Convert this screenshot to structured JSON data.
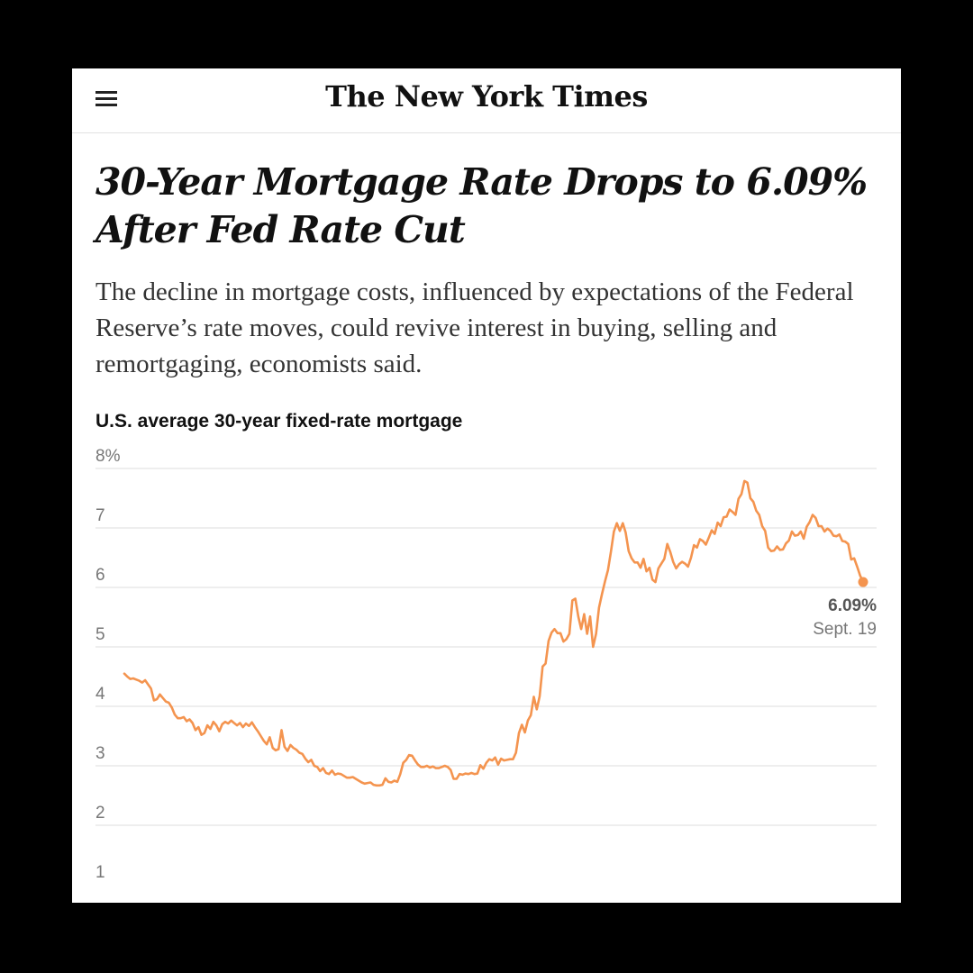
{
  "header": {
    "masthead": "The New York Times",
    "menu_icon": "hamburger-menu-icon"
  },
  "article": {
    "headline": "30-Year Mortgage Rate Drops to 6.09% After Fed Rate Cut",
    "dek": "The decline in mortgage costs, influenced by expectations of the Federal Reserve’s rate moves, could revive interest in buying, selling and remortgaging, economists said."
  },
  "colors": {
    "line": "#f4944f",
    "grid": "#dedede",
    "tick_text": "#777777",
    "background": "#ffffff",
    "frame": "#000000"
  },
  "chart_data": {
    "type": "line",
    "title": "U.S. average 30-year fixed-rate mortgage",
    "xlabel": "",
    "ylabel": "",
    "yticks": [
      {
        "value": 8,
        "label": "8%"
      },
      {
        "value": 7,
        "label": "7"
      },
      {
        "value": 6,
        "label": "6"
      },
      {
        "value": 5,
        "label": "5"
      },
      {
        "value": 4,
        "label": "4"
      },
      {
        "value": 3,
        "label": "3"
      },
      {
        "value": 2,
        "label": "2"
      },
      {
        "value": 1,
        "label": "1"
      }
    ],
    "ylim": [
      0.7,
      8.2
    ],
    "grid": true,
    "x_axis_labels_shown": false,
    "series": [
      {
        "values": [
          4.55,
          4.5,
          4.46,
          4.47,
          4.45,
          4.43,
          4.4,
          4.44,
          4.37,
          4.3,
          4.1,
          4.12,
          4.2,
          4.14,
          4.08,
          4.06,
          3.98,
          3.86,
          3.8,
          3.8,
          3.82,
          3.75,
          3.78,
          3.72,
          3.6,
          3.65,
          3.52,
          3.55,
          3.68,
          3.62,
          3.74,
          3.68,
          3.58,
          3.7,
          3.74,
          3.71,
          3.76,
          3.72,
          3.68,
          3.72,
          3.65,
          3.71,
          3.67,
          3.73,
          3.65,
          3.58,
          3.5,
          3.42,
          3.36,
          3.48,
          3.3,
          3.26,
          3.28,
          3.6,
          3.32,
          3.25,
          3.35,
          3.3,
          3.27,
          3.22,
          3.2,
          3.12,
          3.06,
          3.1,
          3.0,
          2.98,
          2.91,
          2.96,
          2.88,
          2.86,
          2.92,
          2.85,
          2.87,
          2.86,
          2.83,
          2.8,
          2.8,
          2.81,
          2.78,
          2.75,
          2.72,
          2.7,
          2.71,
          2.72,
          2.68,
          2.67,
          2.67,
          2.68,
          2.79,
          2.73,
          2.72,
          2.75,
          2.73,
          2.86,
          3.05,
          3.1,
          3.18,
          3.17,
          3.09,
          3.02,
          2.98,
          2.98,
          3.0,
          2.97,
          2.99,
          2.96,
          2.96,
          2.98,
          3.0,
          2.98,
          2.93,
          2.78,
          2.78,
          2.86,
          2.85,
          2.87,
          2.86,
          2.88,
          2.86,
          2.87,
          3.01,
          2.95,
          3.05,
          3.11,
          3.09,
          3.14,
          3.02,
          3.12,
          3.09,
          3.1,
          3.11,
          3.11,
          3.22,
          3.55,
          3.69,
          3.56,
          3.76,
          3.85,
          4.16,
          3.95,
          4.17,
          4.67,
          4.72,
          5.1,
          5.24,
          5.3,
          5.23,
          5.23,
          5.09,
          5.13,
          5.22,
          5.78,
          5.81,
          5.51,
          5.3,
          5.55,
          5.22,
          5.51,
          5.0,
          5.22,
          5.66,
          5.89,
          6.1,
          6.29,
          6.6,
          6.94,
          7.08,
          6.95,
          7.08,
          6.92,
          6.61,
          6.49,
          6.42,
          6.42,
          6.33,
          6.48,
          6.27,
          6.33,
          6.13,
          6.09,
          6.32,
          6.4,
          6.48,
          6.73,
          6.6,
          6.43,
          6.32,
          6.39,
          6.43,
          6.4,
          6.35,
          6.5,
          6.71,
          6.67,
          6.81,
          6.78,
          6.72,
          6.84,
          6.96,
          6.9,
          7.09,
          7.03,
          7.18,
          7.19,
          7.31,
          7.27,
          7.22,
          7.49,
          7.57,
          7.79,
          7.76,
          7.5,
          7.44,
          7.29,
          7.22,
          7.03,
          6.95,
          6.67,
          6.61,
          6.62,
          6.69,
          6.63,
          6.64,
          6.74,
          6.79,
          6.94,
          6.87,
          6.88,
          6.94,
          6.82,
          7.02,
          7.1,
          7.22,
          7.17,
          7.03,
          7.03,
          6.94,
          6.99,
          6.95,
          6.87,
          6.86,
          6.89,
          6.78,
          6.77,
          6.73,
          6.47,
          6.49,
          6.35,
          6.2,
          6.09
        ],
        "end_label_value": "6.09%",
        "end_label_date": "Sept. 19",
        "end_value": 6.09
      }
    ]
  }
}
